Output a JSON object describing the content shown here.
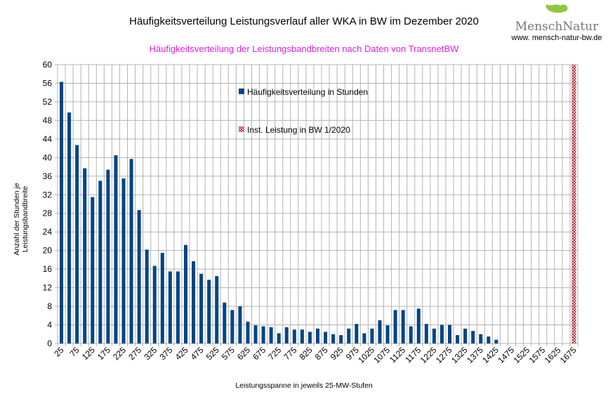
{
  "logo": {
    "brand": "MenschNatur",
    "url": "www. mensch-natur-bw.de"
  },
  "chart_data": {
    "type": "bar",
    "title": "Häufigkeitsverteilung Leistungsverlauf aller WKA in BW im Dezember 2020",
    "subtitle": "Häufigkeitsverteilung der Leistungsbandbreiten nach Daten von TransnetBW",
    "xlabel": "Leistungsspanne in jeweils 25-MW-Stufen",
    "ylabel": "Anzahl der Stunden je Leistungsbandbreite",
    "ylim": [
      0,
      60
    ],
    "yticks": [
      0,
      4,
      8,
      12,
      16,
      20,
      24,
      28,
      32,
      36,
      40,
      44,
      48,
      52,
      56,
      60
    ],
    "x_start": 25,
    "x_step": 25,
    "x_count": 67,
    "series": [
      {
        "name": "Häufigkeitsverteilung in Stunden",
        "color": "#004586",
        "values": [
          56.3,
          49.7,
          42.7,
          37.7,
          31.5,
          35,
          37.4,
          40.5,
          35.5,
          39.7,
          28.7,
          20.2,
          16.7,
          19.5,
          15.5,
          15.5,
          21.2,
          17.7,
          15,
          13.7,
          14.5,
          8.8,
          7.2,
          8,
          4.7,
          3.9,
          3.7,
          3.5,
          2.2,
          3.5,
          3,
          3,
          2.5,
          3.2,
          2.5,
          2,
          1.8,
          3.2,
          4.2,
          2.2,
          3.2,
          5,
          3.9,
          7.2,
          7.2,
          3.7,
          7.5,
          4.2,
          3.2,
          4,
          4,
          1.8,
          3.2,
          2.7,
          2,
          1.5,
          0.8,
          0,
          0,
          0,
          0,
          0,
          0,
          0,
          0,
          0,
          0
        ]
      },
      {
        "name": "Inst. Leistung in BW 1/2020",
        "color": "#b02030",
        "x": 1675,
        "value": 60
      }
    ],
    "legend": "inside-top-center",
    "grid": true
  }
}
